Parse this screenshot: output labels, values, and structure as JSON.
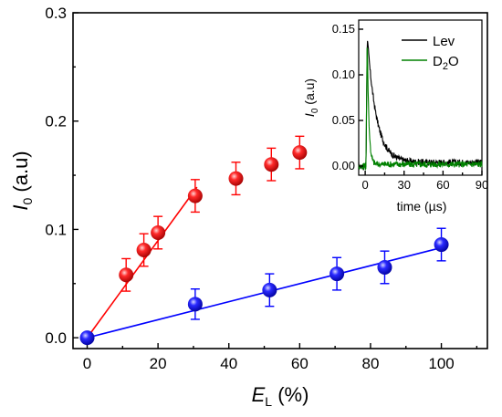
{
  "chart_data": [
    {
      "type": "scatter",
      "xlabel": "E",
      "xlabel_sub": "L",
      "xlabel_unit": " (%)",
      "ylabel": "I",
      "ylabel_sub": "0",
      "ylabel_unit": " (a.u)",
      "xlim": [
        -4,
        113
      ],
      "ylim": [
        -0.01,
        0.3
      ],
      "xticks": [
        0,
        20,
        40,
        60,
        80,
        100
      ],
      "xtick_labels": [
        "0",
        "20",
        "40",
        "60",
        "80",
        "100"
      ],
      "yticks": [
        0.0,
        0.1,
        0.2,
        0.3
      ],
      "ytick_labels": [
        "0.0",
        "0.1",
        "0.2",
        "0.3"
      ],
      "grid": false,
      "series": [
        {
          "color": "#ff0000",
          "x": [
            11,
            16,
            20,
            30.5,
            42,
            52,
            60
          ],
          "y": [
            0.058,
            0.081,
            0.097,
            0.131,
            0.147,
            0.16,
            0.171
          ],
          "err": [
            0.015,
            0.015,
            0.015,
            0.015,
            0.015,
            0.015,
            0.015
          ],
          "fit": {
            "x": [
              0,
              31
            ],
            "y": [
              0,
              0.139
            ]
          }
        },
        {
          "color": "#0000ff",
          "x": [
            0,
            30.5,
            51.5,
            70.5,
            84,
            100
          ],
          "y": [
            0.0,
            0.031,
            0.044,
            0.059,
            0.065,
            0.086
          ],
          "err": [
            0.0,
            0.014,
            0.015,
            0.015,
            0.015,
            0.015
          ],
          "fit": {
            "x": [
              0,
              101
            ],
            "y": [
              0,
              0.084
            ]
          }
        }
      ]
    },
    {
      "type": "line",
      "inset": true,
      "xlabel": "time (",
      "xlabel_mu": "µ",
      "xlabel_unit": "s)",
      "ylabel": "I",
      "ylabel_sub": "0",
      "ylabel_unit": " (a.u)",
      "xlim": [
        -5,
        90
      ],
      "ylim": [
        -0.01,
        0.16
      ],
      "xticks": [
        0,
        30,
        60,
        90
      ],
      "xtick_labels": [
        "0",
        "30",
        "60",
        "90"
      ],
      "yticks": [
        0.0,
        0.05,
        0.1,
        0.15
      ],
      "ytick_labels": [
        "0.00",
        "0.05",
        "0.10",
        "0.15"
      ],
      "grid": false,
      "legend_position": "top-right",
      "series": [
        {
          "name": "Lev",
          "color": "#000000",
          "peak": 0.142,
          "decay_us": 7,
          "tail": 0.004
        },
        {
          "name": "D",
          "name_sub": "2",
          "name_rest": "O",
          "color": "#008000",
          "peak": 0.145,
          "decay_us": 1.2,
          "tail": 0.002
        }
      ]
    }
  ]
}
